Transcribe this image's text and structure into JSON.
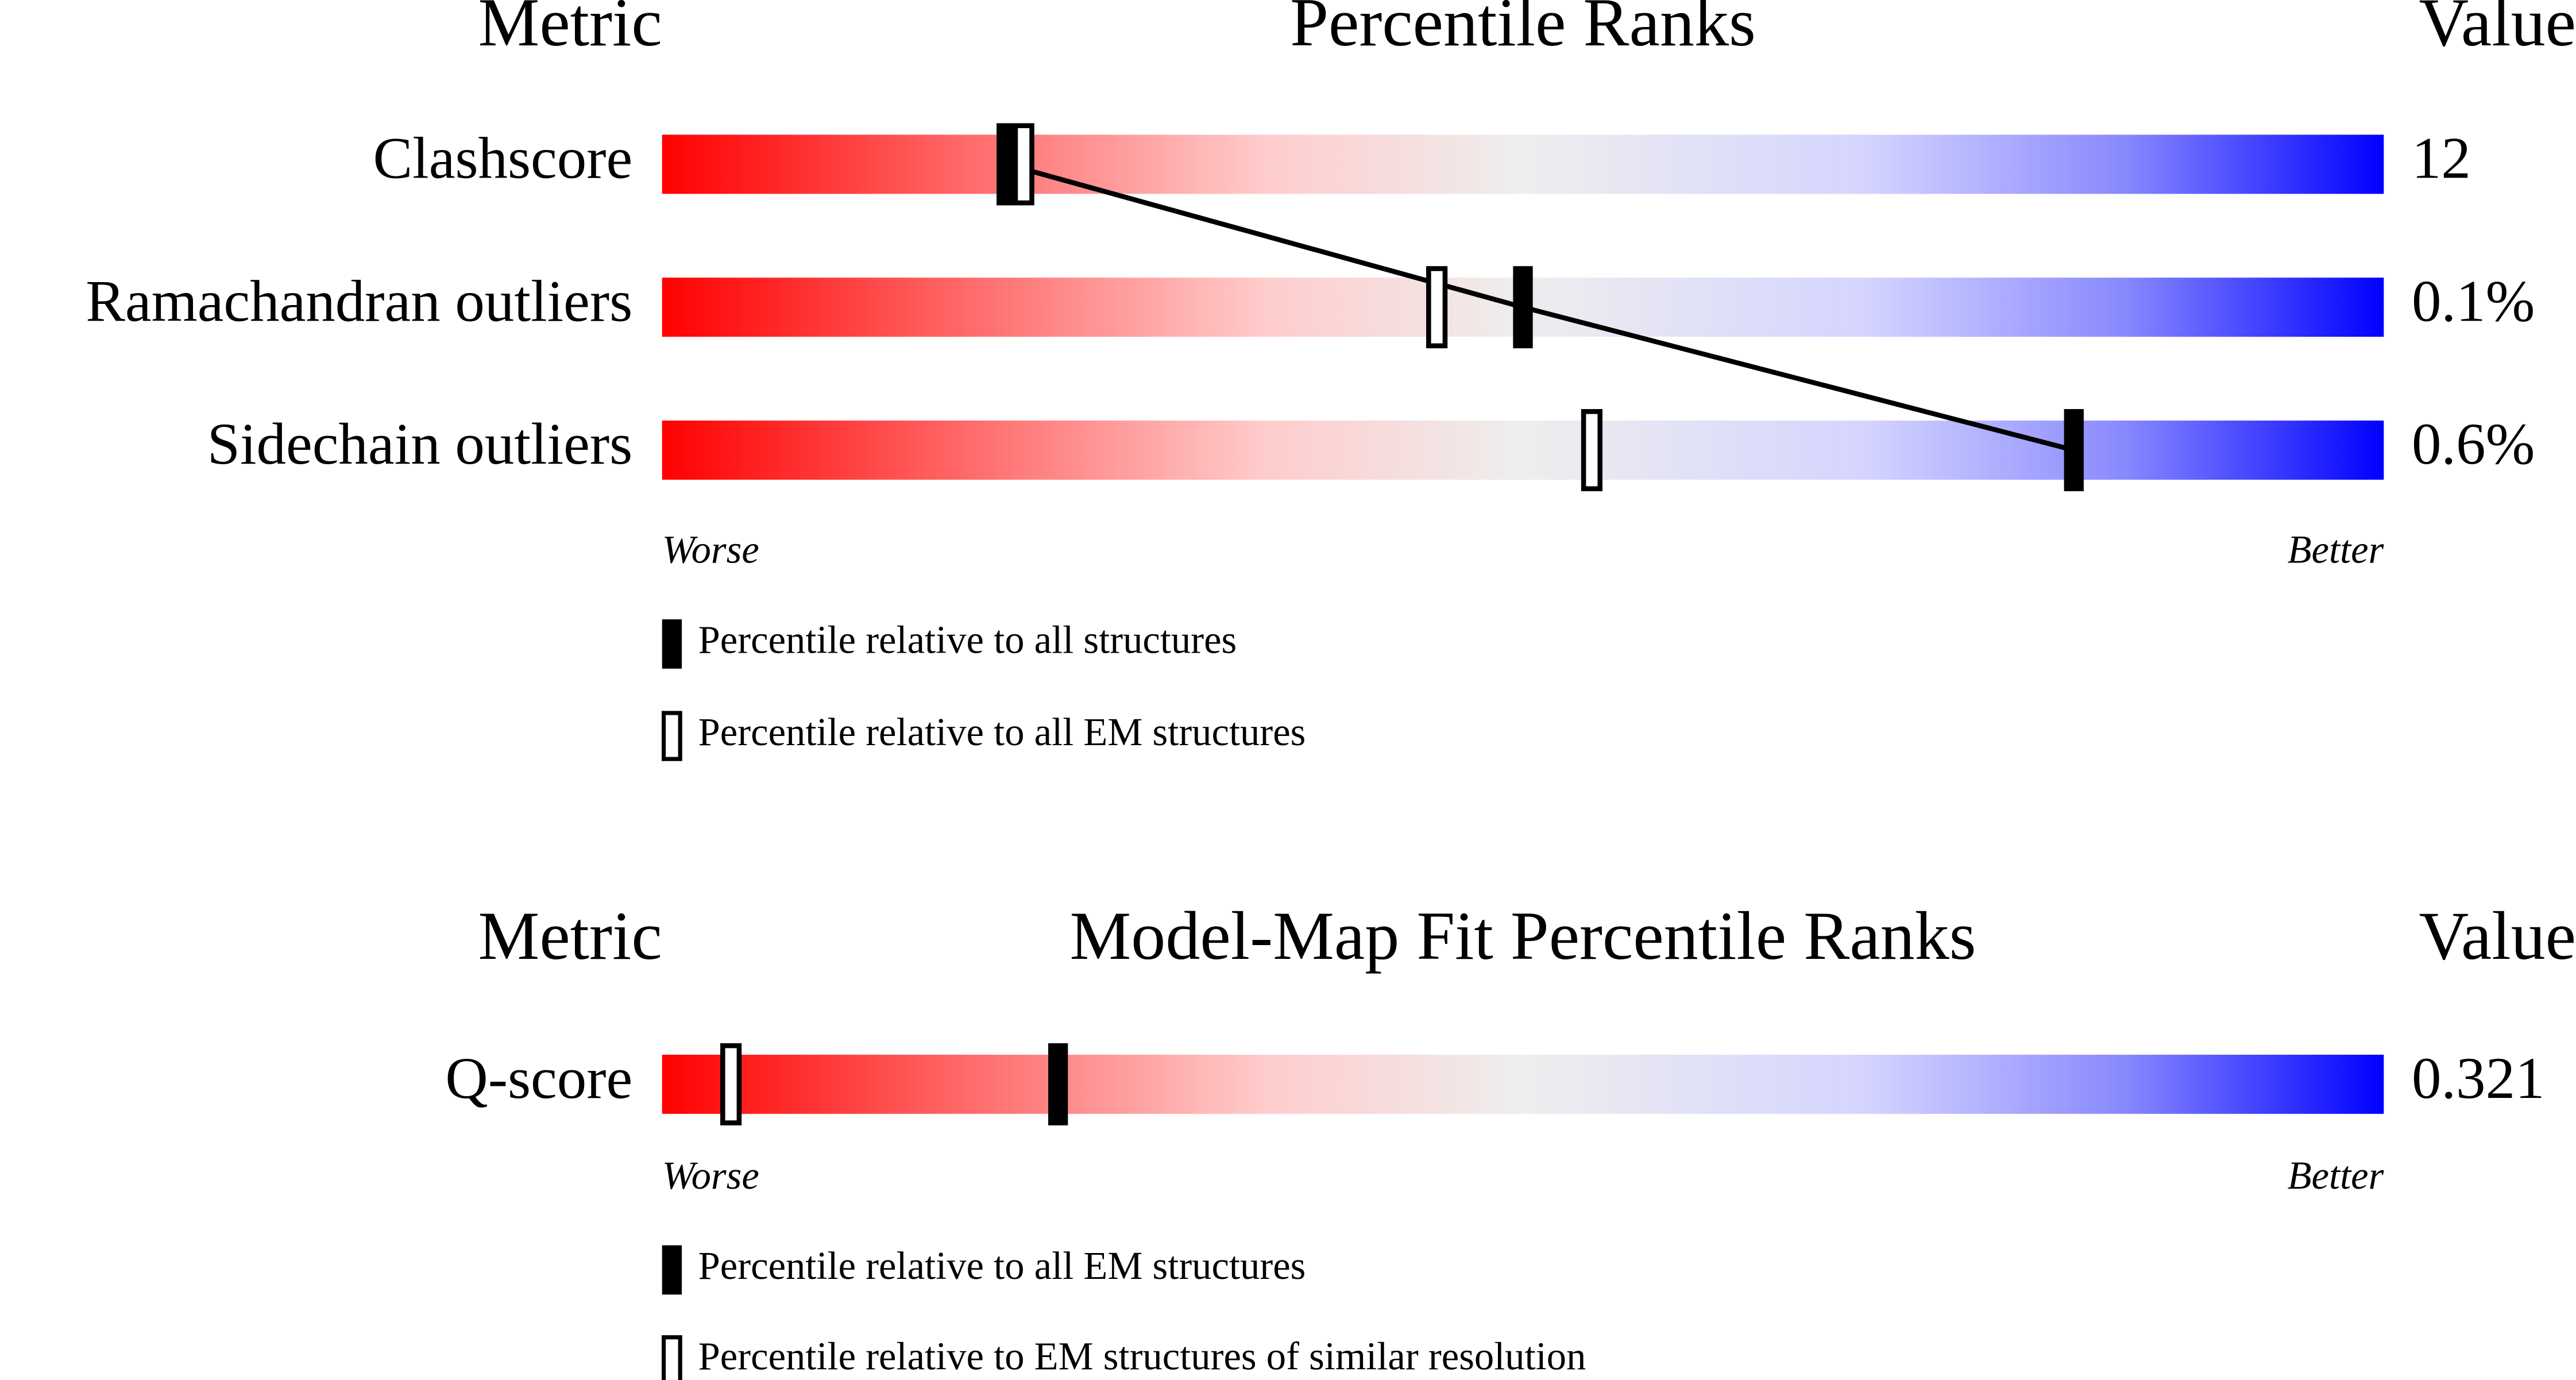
{
  "chart_data": [
    {
      "type": "percentile",
      "metric_header": "Metric",
      "title": "Percentile Ranks",
      "value_header": "Value",
      "categories": [
        "Clashscore",
        "Ramachandran outliers",
        "Sidechain outliers"
      ],
      "values": [
        12,
        0.1,
        0.6
      ],
      "value_labels": [
        "12",
        "0.1%",
        "0.6%"
      ],
      "xlim": [
        0,
        100
      ],
      "worse_label": "Worse",
      "better_label": "Better",
      "connect": true,
      "series": [
        {
          "name": "Percentile relative to all structures",
          "filled": true,
          "color": "#000000",
          "values": [
            20,
            50,
            82
          ]
        },
        {
          "name": "Percentile relative to all EM structures",
          "filled": false,
          "color": "#000000",
          "values": [
            21,
            45,
            54
          ]
        }
      ]
    },
    {
      "type": "percentile",
      "metric_header": "Metric",
      "title": "Model-Map Fit Percentile Ranks",
      "value_header": "Value",
      "categories": [
        "Q-score"
      ],
      "values": [
        0.321
      ],
      "value_labels": [
        "0.321"
      ],
      "xlim": [
        0,
        100
      ],
      "worse_label": "Worse",
      "better_label": "Better",
      "connect": false,
      "series": [
        {
          "name": "Percentile relative to all EM structures",
          "filled": true,
          "color": "#000000",
          "values": [
            23
          ]
        },
        {
          "name": "Percentile relative to EM structures of similar resolution",
          "filled": false,
          "color": "#000000",
          "values": [
            4
          ]
        }
      ]
    }
  ]
}
